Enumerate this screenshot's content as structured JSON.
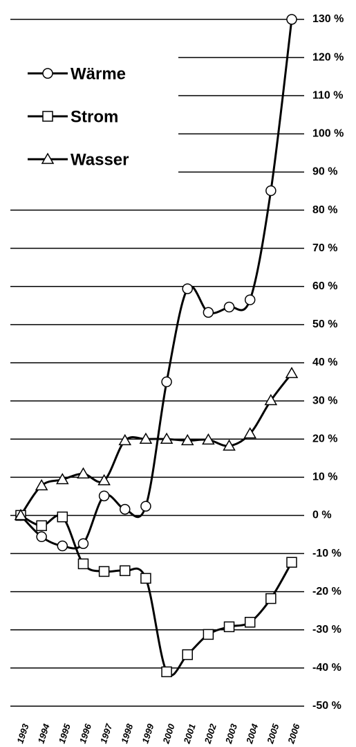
{
  "chart_data": {
    "type": "line",
    "categories": [
      "1993",
      "1994",
      "1995",
      "1996",
      "1997",
      "1998",
      "1999",
      "2000",
      "2001",
      "2002",
      "2003",
      "2004",
      "2005",
      "2006"
    ],
    "series": [
      {
        "name": "Wärme",
        "color": "#000000",
        "marker": "circle",
        "values": [
          0,
          -5.6,
          -8,
          -7.4,
          5.1,
          1.6,
          2.4,
          35,
          59.4,
          53.2,
          54.6,
          56.5,
          85.1,
          130
        ]
      },
      {
        "name": "Strom",
        "color": "#000000",
        "marker": "square",
        "values": [
          0,
          -2.7,
          -0.4,
          -12.7,
          -14.7,
          -14.5,
          -16.5,
          -41,
          -36.5,
          -31.2,
          -29.2,
          -28,
          -21.8,
          -12.3
        ]
      },
      {
        "name": "Wasser",
        "color": "#000000",
        "marker": "triangle",
        "values": [
          0,
          7.8,
          9.4,
          10.9,
          9.1,
          19.6,
          20,
          20,
          19.6,
          19.8,
          18.2,
          21.4,
          30.1,
          37.2
        ]
      }
    ],
    "ylim": [
      -50,
      130
    ],
    "yticks": [
      {
        "value": 130,
        "label": "130 %"
      },
      {
        "value": 120,
        "label": "120 %"
      },
      {
        "value": 110,
        "label": "110 %"
      },
      {
        "value": 100,
        "label": "100 %"
      },
      {
        "value": 90,
        "label": "90 %"
      },
      {
        "value": 80,
        "label": "80 %"
      },
      {
        "value": 70,
        "label": "70 %"
      },
      {
        "value": 60,
        "label": "60 %"
      },
      {
        "value": 50,
        "label": "50 %"
      },
      {
        "value": 40,
        "label": "40 %"
      },
      {
        "value": 30,
        "label": "30 %"
      },
      {
        "value": 20,
        "label": "20 %"
      },
      {
        "value": 10,
        "label": "10 %"
      },
      {
        "value": 0,
        "label": "0 %"
      },
      {
        "value": -10,
        "label": "-10 %"
      },
      {
        "value": -20,
        "label": "-20 %"
      },
      {
        "value": -30,
        "label": "-30 %"
      },
      {
        "value": -40,
        "label": "-40 %"
      },
      {
        "value": -50,
        "label": "-50 %"
      }
    ],
    "grid": true,
    "legend": "upper left"
  }
}
